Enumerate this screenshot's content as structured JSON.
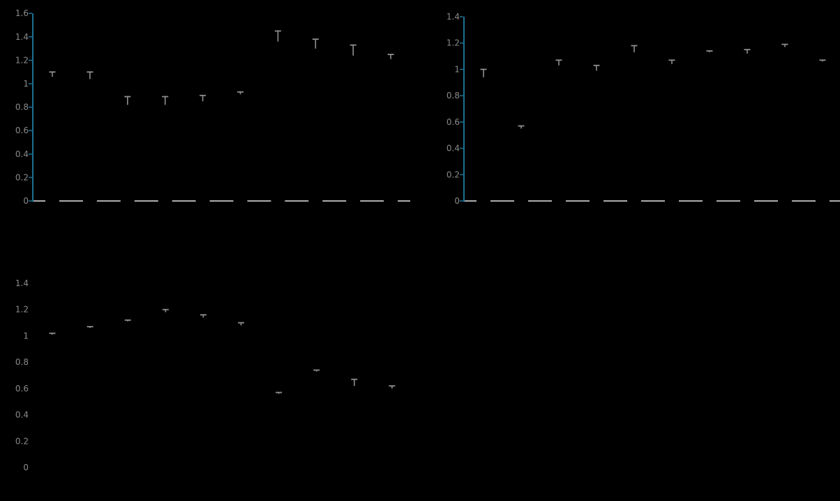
{
  "page": {
    "background_color": "#000000",
    "title": "",
    "notes": "three error-bar bar charts on black background; bars are black (invisible), only gray upper error caps, gray y tick labels, teal y-axis spines and light x-axis lines are visible; x tick labels and titles are not visible"
  },
  "colors": {
    "background": "#000000",
    "y_axis_blue": "#1e7092",
    "x_axis_light": "#d9d9d9",
    "tick_label_gray": "#8a8a8a",
    "error_bar_gray": "#8f8f8f",
    "bar_black": "#000000"
  },
  "chart_data": [
    {
      "id": "top_left",
      "type": "bar",
      "title": "",
      "xlabel": "",
      "ylabel": "",
      "n_bars": 10,
      "values": [
        1.06,
        1.04,
        0.82,
        0.82,
        0.85,
        0.91,
        1.36,
        1.3,
        1.24,
        1.21
      ],
      "errors": [
        0.04,
        0.06,
        0.07,
        0.07,
        0.05,
        0.02,
        0.09,
        0.08,
        0.09,
        0.04
      ],
      "ylim": [
        0,
        1.6
      ],
      "yticks": [
        0,
        0.2,
        0.4,
        0.6,
        0.8,
        1.0,
        1.2,
        1.4,
        1.6
      ],
      "ytick_labels": [
        "0",
        "0.2",
        "0.4",
        "0.6",
        "0.8",
        "1",
        "1.2",
        "1.4",
        "1.6"
      ],
      "x_tick_labels_visible": false,
      "grid": false,
      "legend": null,
      "bar_color": "#000000",
      "error_color": "#8f8f8f",
      "y_axis_color": "#1e7092",
      "x_axis_color": "#d9d9d9",
      "tick_label_color": "#8a8a8a",
      "y_axis_visible": true,
      "x_axis_visible": true
    },
    {
      "id": "top_right",
      "type": "bar",
      "title": "",
      "xlabel": "",
      "ylabel": "",
      "n_bars": 10,
      "values": [
        0.94,
        0.55,
        1.03,
        0.99,
        1.13,
        1.04,
        1.13,
        1.12,
        1.17,
        1.06
      ],
      "errors": [
        0.06,
        0.02,
        0.04,
        0.04,
        0.05,
        0.03,
        0.01,
        0.03,
        0.02,
        0.01
      ],
      "ylim": [
        0,
        1.4
      ],
      "yticks": [
        0,
        0.2,
        0.4,
        0.6,
        0.8,
        1.0,
        1.2,
        1.4
      ],
      "ytick_labels": [
        "0",
        "0.2",
        "0.4",
        "0.6",
        "0.8",
        "1",
        "1.2",
        "1.4"
      ],
      "x_tick_labels_visible": false,
      "grid": false,
      "legend": null,
      "bar_color": "#000000",
      "error_color": "#8f8f8f",
      "y_axis_color": "#1e7092",
      "x_axis_color": "#d9d9d9",
      "tick_label_color": "#8a8a8a",
      "y_axis_visible": true,
      "x_axis_visible": true
    },
    {
      "id": "bottom_left",
      "type": "bar",
      "title": "",
      "xlabel": "",
      "ylabel": "",
      "n_bars": 10,
      "values": [
        1.01,
        1.06,
        1.11,
        1.18,
        1.14,
        1.08,
        0.56,
        0.73,
        0.62,
        0.6
      ],
      "errors": [
        0.01,
        0.01,
        0.01,
        0.02,
        0.02,
        0.02,
        0.01,
        0.01,
        0.05,
        0.02
      ],
      "ylim": [
        0,
        1.4
      ],
      "yticks": [
        0,
        0.2,
        0.4,
        0.6,
        0.8,
        1.0,
        1.2,
        1.4
      ],
      "ytick_labels": [
        "0",
        "0.2",
        "0.4",
        "0.6",
        "0.8",
        "1",
        "1.2",
        "1.4"
      ],
      "x_tick_labels_visible": false,
      "grid": false,
      "legend": null,
      "bar_color": "#000000",
      "error_color": "#8f8f8f",
      "y_axis_color": "#1e7092",
      "x_axis_color": "#d9d9d9",
      "tick_label_color": "#8a8a8a",
      "y_axis_visible": false,
      "x_axis_visible": false
    }
  ]
}
